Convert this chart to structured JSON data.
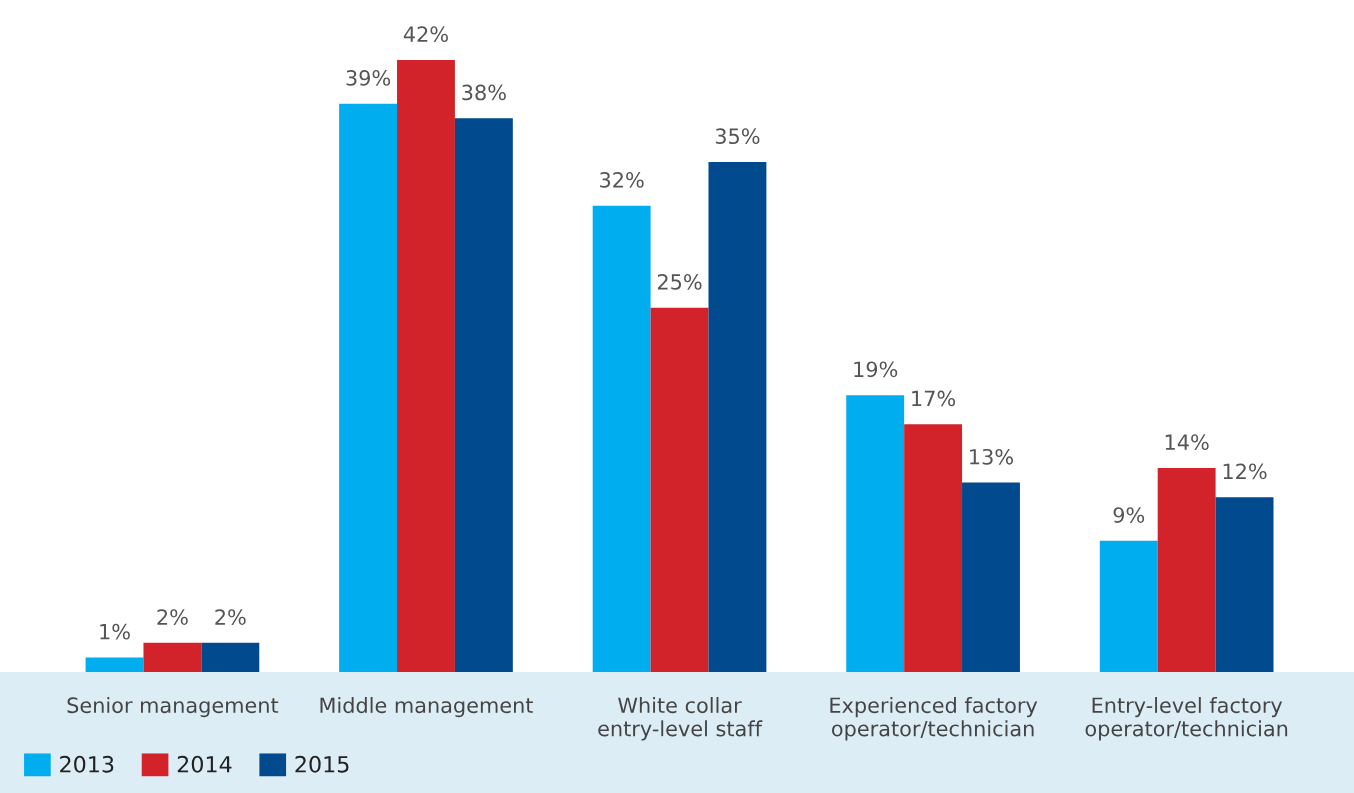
{
  "chart_data": {
    "type": "bar",
    "categories": [
      "Senior management",
      "Middle management",
      "White collar\nentry-level staff",
      "Experienced factory\noperator/technician",
      "Entry-level factory\noperator/technician"
    ],
    "series": [
      {
        "name": "2013",
        "color": "#00adef",
        "values": [
          1,
          39,
          32,
          19,
          9
        ],
        "value_labels": [
          "1%",
          "39%",
          "32%",
          "19%",
          "9%"
        ]
      },
      {
        "name": "2014",
        "color": "#d2232a",
        "values": [
          2,
          42,
          25,
          17,
          14
        ],
        "value_labels": [
          "2%",
          "42%",
          "25%",
          "17%",
          "14%"
        ]
      },
      {
        "name": "2015",
        "color": "#004a8d",
        "values": [
          2,
          38,
          35,
          13,
          12
        ],
        "value_labels": [
          "2%",
          "38%",
          "35%",
          "13%",
          "12%"
        ]
      }
    ],
    "legend": "bottom left",
    "grid": false
  }
}
